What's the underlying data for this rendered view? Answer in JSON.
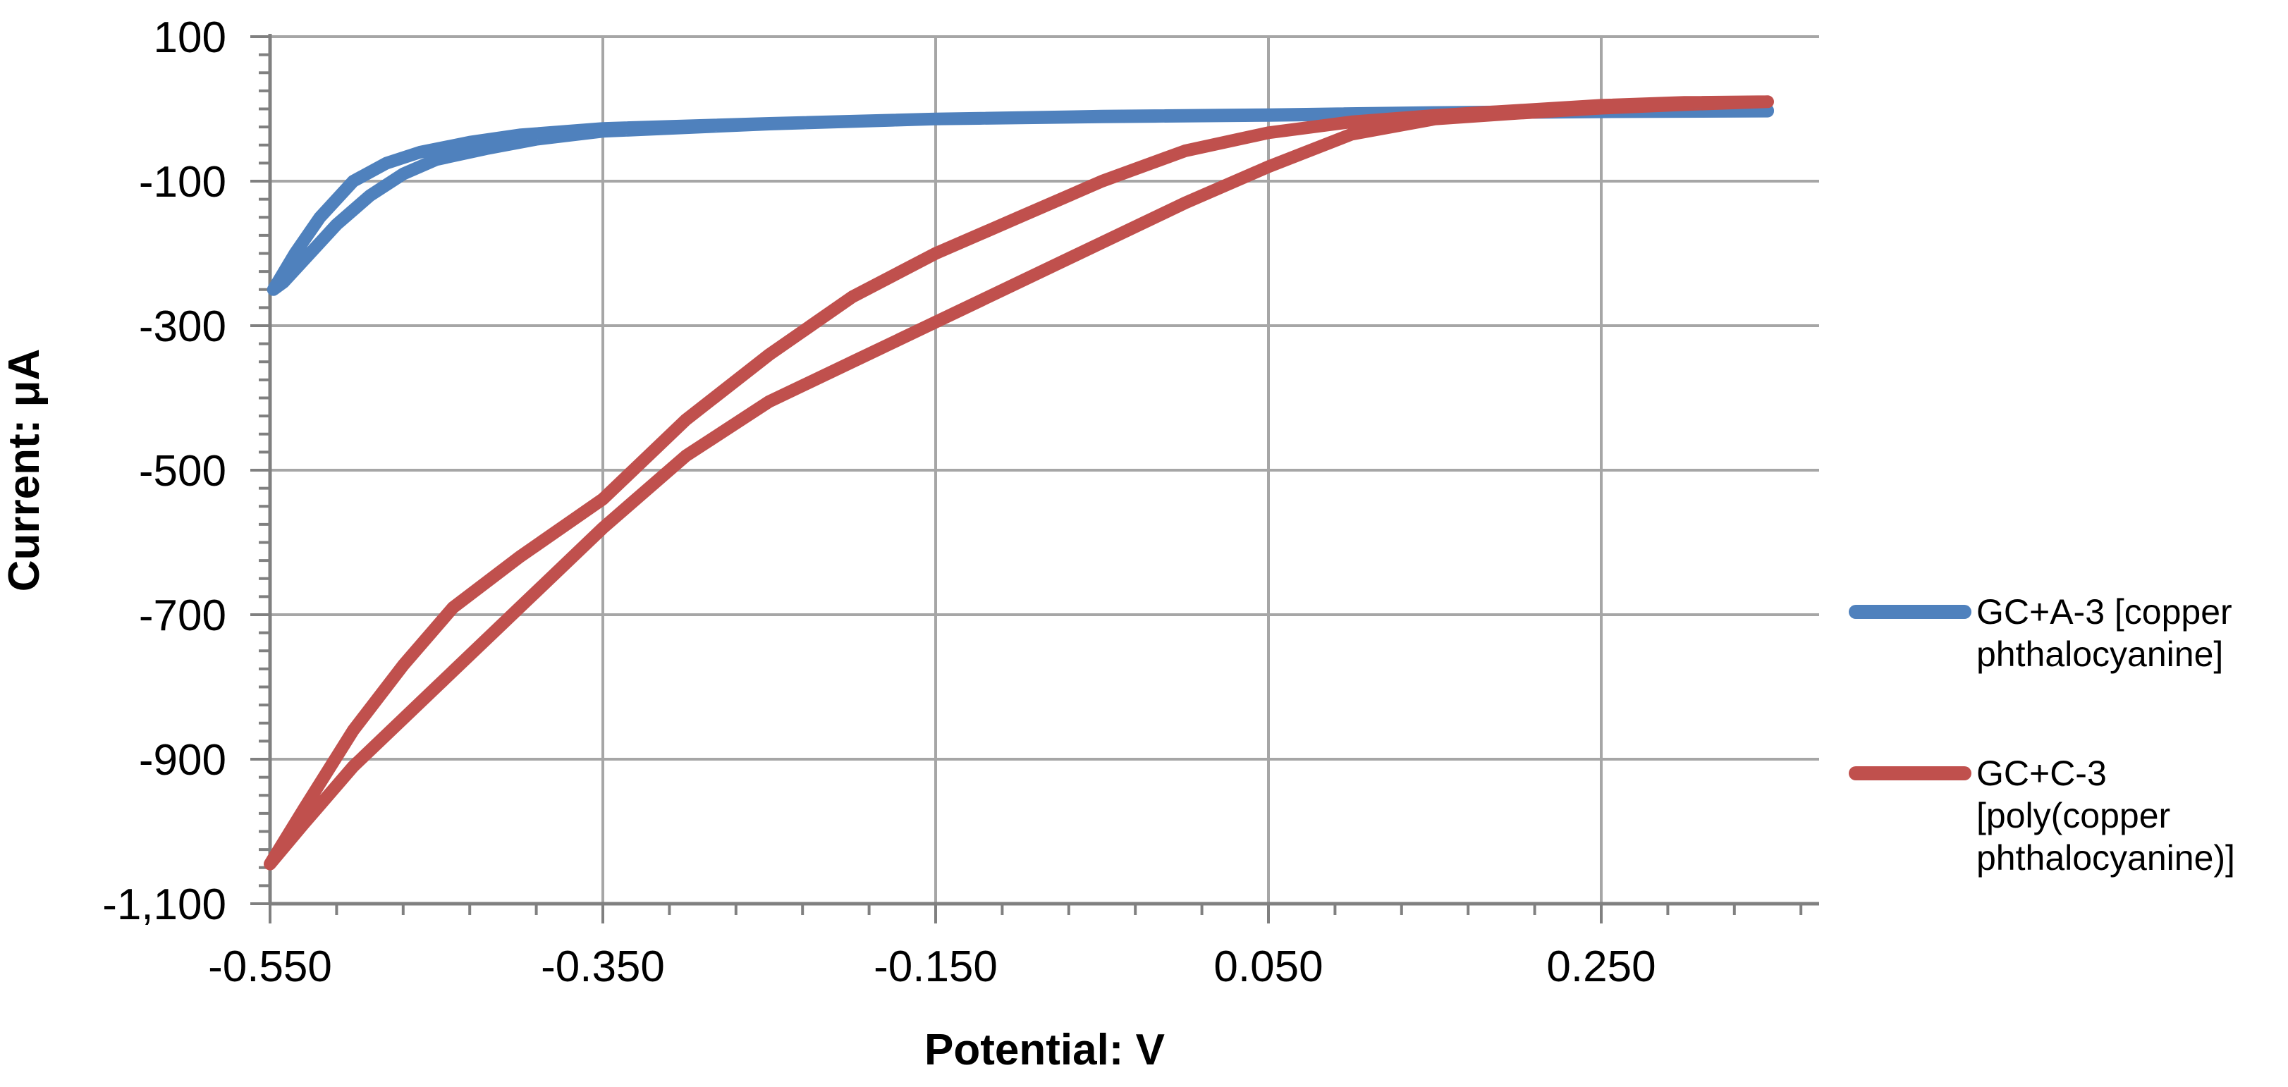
{
  "chart_data": {
    "type": "line",
    "xlabel": "Potential: V",
    "ylabel": "Current: μA",
    "xlim": [
      -0.55,
      0.355
    ],
    "ylim": [
      -1100,
      100
    ],
    "x_ticks": [
      "-0.550",
      "-0.350",
      "-0.150",
      "0.050",
      "0.250"
    ],
    "y_ticks": [
      "100",
      "-100",
      "-300",
      "-500",
      "-700",
      "-900",
      "-1,100"
    ],
    "grid": true,
    "legend_position": "right",
    "series": [
      {
        "name": "GC+A-3 [copper phthalocyanine]",
        "color": "#4F81BD",
        "points": [
          [
            0.35,
            -3
          ],
          [
            0.25,
            -4
          ],
          [
            0.15,
            -6
          ],
          [
            0.05,
            -9
          ],
          [
            -0.05,
            -11
          ],
          [
            -0.15,
            -14
          ],
          [
            -0.25,
            -20
          ],
          [
            -0.35,
            -27
          ],
          [
            -0.4,
            -36
          ],
          [
            -0.43,
            -46
          ],
          [
            -0.46,
            -60
          ],
          [
            -0.48,
            -75
          ],
          [
            -0.5,
            -100
          ],
          [
            -0.52,
            -150
          ],
          [
            -0.535,
            -200
          ],
          [
            -0.548,
            -250
          ],
          [
            -0.542,
            -240
          ],
          [
            -0.53,
            -210
          ],
          [
            -0.51,
            -160
          ],
          [
            -0.49,
            -120
          ],
          [
            -0.47,
            -90
          ],
          [
            -0.45,
            -70
          ],
          [
            -0.42,
            -55
          ],
          [
            -0.39,
            -42
          ],
          [
            -0.35,
            -31
          ],
          [
            -0.25,
            -21
          ],
          [
            -0.15,
            -14
          ],
          [
            -0.05,
            -10
          ],
          [
            0.05,
            -8
          ],
          [
            0.15,
            -5
          ],
          [
            0.25,
            -3
          ],
          [
            0.35,
            -2
          ]
        ]
      },
      {
        "name": "GC+C-3 [poly(copper phthalocyanine)]",
        "color": "#C0504D",
        "points": [
          [
            0.35,
            10
          ],
          [
            0.3,
            6
          ],
          [
            0.25,
            1
          ],
          [
            0.2,
            -6
          ],
          [
            0.15,
            -14
          ],
          [
            0.1,
            -35
          ],
          [
            0.05,
            -80
          ],
          [
            0.0,
            -130
          ],
          [
            -0.05,
            -185
          ],
          [
            -0.1,
            -240
          ],
          [
            -0.15,
            -295
          ],
          [
            -0.2,
            -350
          ],
          [
            -0.25,
            -405
          ],
          [
            -0.3,
            -480
          ],
          [
            -0.35,
            -580
          ],
          [
            -0.4,
            -690
          ],
          [
            -0.45,
            -800
          ],
          [
            -0.5,
            -910
          ],
          [
            -0.53,
            -990
          ],
          [
            -0.55,
            -1045
          ],
          [
            -0.53,
            -970
          ],
          [
            -0.5,
            -860
          ],
          [
            -0.47,
            -770
          ],
          [
            -0.44,
            -690
          ],
          [
            -0.4,
            -620
          ],
          [
            -0.35,
            -540
          ],
          [
            -0.3,
            -430
          ],
          [
            -0.25,
            -340
          ],
          [
            -0.2,
            -260
          ],
          [
            -0.15,
            -200
          ],
          [
            -0.1,
            -150
          ],
          [
            -0.05,
            -100
          ],
          [
            0.0,
            -58
          ],
          [
            0.05,
            -33
          ],
          [
            0.1,
            -18
          ],
          [
            0.15,
            -9
          ],
          [
            0.2,
            -2
          ],
          [
            0.25,
            5
          ],
          [
            0.3,
            9
          ],
          [
            0.35,
            10
          ]
        ]
      }
    ]
  },
  "legend": {
    "items": [
      {
        "lines": [
          "GC+A-3 [copper",
          "phthalocyanine]"
        ]
      },
      {
        "lines": [
          "GC+C-3",
          "[poly(copper",
          "phthalocyanine)]"
        ]
      }
    ]
  }
}
